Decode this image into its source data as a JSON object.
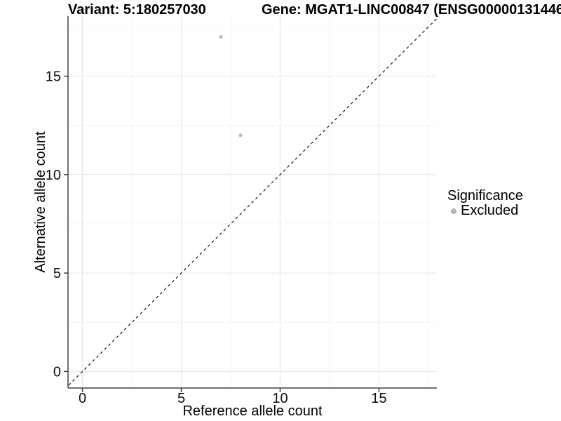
{
  "header": {
    "variant_title": "Variant: 5:180257030",
    "gene_title": "Gene: MGAT1-LINC00847 (ENSG00000131446"
  },
  "chart_data": {
    "type": "scatter",
    "xlabel": "Reference allele count",
    "ylabel": "Alternative allele count",
    "x_ticks": [
      0,
      5,
      10,
      15
    ],
    "y_ticks": [
      0,
      5,
      10,
      15
    ],
    "x_minor_ticks": [
      2.5,
      7.5,
      12.5,
      17.5
    ],
    "y_minor_ticks": [
      2.5,
      7.5,
      12.5,
      17.5
    ],
    "xlim": [
      -0.73,
      17.93
    ],
    "ylim": [
      -0.84,
      18.05
    ],
    "grid": true,
    "identity_line": {
      "style": "dashed",
      "color": "#000000",
      "from": -0.9,
      "to": 18.2
    },
    "points": [
      {
        "x": 7,
        "y": 17,
        "significance": "Excluded"
      },
      {
        "x": 8,
        "y": 12,
        "significance": "Excluded"
      }
    ],
    "point_color": "#bebebe",
    "legend": {
      "title": "Significance",
      "position": "right",
      "items": [
        {
          "label": "Excluded",
          "color": "#b5b5b5"
        }
      ]
    }
  },
  "colors": {
    "background": "#ffffff",
    "grid_major": "#e8e8e8",
    "grid_minor": "#f4f4f4",
    "axis_line": "#404040",
    "tick_text": "#111111",
    "point": "#bebebe"
  }
}
